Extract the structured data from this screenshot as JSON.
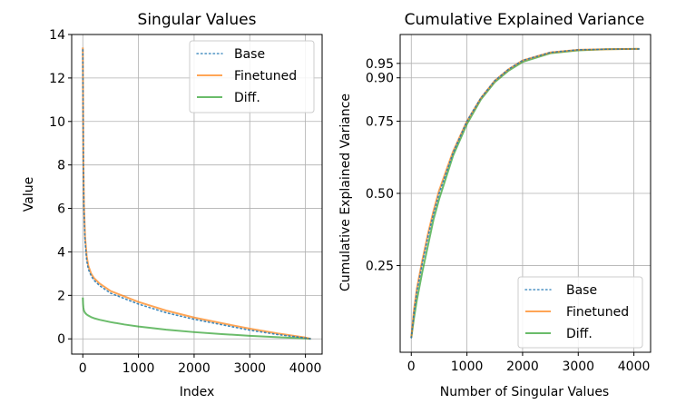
{
  "chart_data": [
    {
      "type": "line",
      "title": "Singular Values",
      "xlabel": "Index",
      "ylabel": "Value",
      "xlim": [
        -200,
        4300
      ],
      "ylim": [
        -0.7,
        14
      ],
      "xticks": [
        0,
        1000,
        2000,
        3000,
        4000
      ],
      "xtick_labels": [
        "0",
        "1000",
        "2000",
        "3000",
        "4000"
      ],
      "yticks": [
        0,
        2,
        4,
        6,
        8,
        10,
        12,
        14
      ],
      "ytick_labels": [
        "0",
        "2",
        "4",
        "6",
        "8",
        "10",
        "12",
        "14"
      ],
      "grid": true,
      "legend_position": "upper right",
      "series": [
        {
          "name": "Base",
          "color": "#1f77b4",
          "style": "dotted",
          "x": [
            0,
            5,
            10,
            20,
            40,
            70,
            100,
            150,
            200,
            300,
            500,
            750,
            1000,
            1500,
            2000,
            2500,
            3000,
            3500,
            4000,
            4096
          ],
          "y": [
            13.3,
            10.5,
            8.0,
            6.0,
            4.5,
            3.6,
            3.2,
            2.9,
            2.7,
            2.45,
            2.1,
            1.85,
            1.6,
            1.2,
            0.9,
            0.65,
            0.4,
            0.2,
            0.04,
            0.0
          ]
        },
        {
          "name": "Finetuned",
          "color": "#ff7f0e",
          "style": "solid",
          "x": [
            0,
            5,
            10,
            20,
            40,
            70,
            100,
            150,
            200,
            300,
            500,
            750,
            1000,
            1500,
            2000,
            2500,
            3000,
            3500,
            4000,
            4096
          ],
          "y": [
            13.4,
            10.7,
            8.2,
            6.2,
            4.7,
            3.8,
            3.35,
            3.0,
            2.8,
            2.55,
            2.2,
            1.95,
            1.7,
            1.3,
            0.98,
            0.72,
            0.47,
            0.25,
            0.06,
            0.0
          ]
        },
        {
          "name": "Diff.",
          "color": "#2ca02c",
          "style": "solid",
          "x": [
            0,
            5,
            10,
            20,
            40,
            70,
            100,
            150,
            200,
            300,
            500,
            750,
            1000,
            1500,
            2000,
            2500,
            3000,
            3500,
            4000,
            4096
          ],
          "y": [
            1.9,
            1.6,
            1.45,
            1.3,
            1.2,
            1.12,
            1.07,
            1.0,
            0.95,
            0.88,
            0.77,
            0.66,
            0.57,
            0.42,
            0.31,
            0.22,
            0.14,
            0.08,
            0.02,
            0.0
          ]
        }
      ]
    },
    {
      "type": "line",
      "title": "Cumulative Explained Variance",
      "xlabel": "Number of Singular Values",
      "ylabel": "Cumulative Explained Variance",
      "xlim": [
        -200,
        4300
      ],
      "ylim": [
        -0.05,
        1.05
      ],
      "xticks": [
        0,
        1000,
        2000,
        3000,
        4000
      ],
      "xtick_labels": [
        "0",
        "1000",
        "2000",
        "3000",
        "4000"
      ],
      "yticks": [
        0.25,
        0.5,
        0.75,
        0.9,
        0.95
      ],
      "ytick_labels": [
        "0.25",
        "0.50",
        "0.75",
        "0.90",
        "0.95"
      ],
      "grid": true,
      "legend_position": "lower right",
      "series": [
        {
          "name": "Base",
          "color": "#1f77b4",
          "style": "dotted",
          "x": [
            0,
            50,
            100,
            200,
            300,
            400,
            500,
            750,
            1000,
            1250,
            1500,
            1750,
            2000,
            2500,
            3000,
            3500,
            4000,
            4096
          ],
          "y": [
            0.0,
            0.09,
            0.16,
            0.26,
            0.35,
            0.43,
            0.5,
            0.64,
            0.75,
            0.83,
            0.89,
            0.93,
            0.96,
            0.988,
            0.997,
            0.999,
            1.0,
            1.0
          ]
        },
        {
          "name": "Finetuned",
          "color": "#ff7f0e",
          "style": "solid",
          "x": [
            0,
            50,
            100,
            200,
            300,
            400,
            500,
            750,
            1000,
            1250,
            1500,
            1750,
            2000,
            2500,
            3000,
            3500,
            4000,
            4096
          ],
          "y": [
            0.0,
            0.1,
            0.17,
            0.27,
            0.36,
            0.44,
            0.51,
            0.645,
            0.75,
            0.83,
            0.89,
            0.93,
            0.96,
            0.988,
            0.997,
            0.999,
            1.0,
            1.0
          ]
        },
        {
          "name": "Diff.",
          "color": "#2ca02c",
          "style": "solid",
          "x": [
            0,
            50,
            100,
            200,
            300,
            400,
            500,
            750,
            1000,
            1250,
            1500,
            1750,
            2000,
            2500,
            3000,
            3500,
            4000,
            4096
          ],
          "y": [
            0.0,
            0.07,
            0.13,
            0.23,
            0.32,
            0.41,
            0.48,
            0.63,
            0.74,
            0.825,
            0.885,
            0.925,
            0.955,
            0.985,
            0.995,
            0.999,
            1.0,
            1.0
          ]
        }
      ]
    }
  ]
}
